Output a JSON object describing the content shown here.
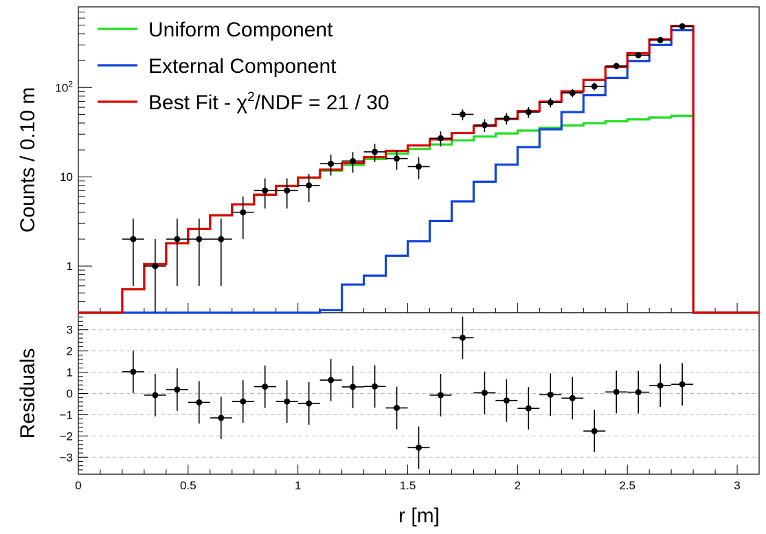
{
  "chart_data": [
    {
      "type": "line",
      "panel": "main",
      "yscale": "log",
      "xlim": [
        0,
        3.1
      ],
      "ylim": [
        0.3,
        800
      ],
      "xlabel": "",
      "ylabel": "Counts / 0.10 m",
      "ytick_labels": [
        {
          "value": 1,
          "label": "1"
        },
        {
          "value": 10,
          "label": "10"
        },
        {
          "value": 100,
          "label": "10",
          "exponent": "2"
        }
      ],
      "legend": {
        "placement": "top-left",
        "entries": [
          {
            "series": "uniform",
            "label": "Uniform Component"
          },
          {
            "series": "external",
            "label": "External Component"
          },
          {
            "series": "best_fit",
            "label_prefix": "Best Fit - ",
            "chi": "χ",
            "chi_sup": "2",
            "label_suffix": "/NDF = 21 / 30"
          }
        ]
      },
      "bin_edges": [
        0.0,
        0.1,
        0.2,
        0.3,
        0.4,
        0.5,
        0.6,
        0.7,
        0.8,
        0.9,
        1.0,
        1.1,
        1.2,
        1.3,
        1.4,
        1.5,
        1.6,
        1.7,
        1.8,
        1.9,
        2.0,
        2.1,
        2.2,
        2.3,
        2.4,
        2.5,
        2.6,
        2.7,
        2.8,
        2.9,
        3.0,
        3.1
      ],
      "series": [
        {
          "key": "uniform",
          "color": "#22dd22",
          "values": [
            0,
            0,
            0.55,
            1.05,
            1.8,
            2.6,
            3.7,
            4.9,
            6.3,
            7.9,
            9.8,
            11.7,
            13.6,
            15.8,
            18.2,
            20.5,
            23.0,
            25.6,
            28.2,
            30.6,
            32.9,
            35.3,
            37.5,
            39.7,
            41.8,
            43.9,
            46.1,
            48.3,
            0,
            0,
            0
          ]
        },
        {
          "key": "external",
          "color": "#1144dd",
          "values": [
            0,
            0,
            0,
            0,
            0,
            0,
            0,
            0,
            0,
            0,
            0,
            0.32,
            0.62,
            0.78,
            1.3,
            1.9,
            3.2,
            5.3,
            8.8,
            13.7,
            21.5,
            34.0,
            53.0,
            82.0,
            128.0,
            198.0,
            300.0,
            440.0,
            0,
            0,
            0
          ]
        },
        {
          "key": "best_fit",
          "color": "#dd0000",
          "values": [
            0,
            0,
            0.55,
            1.05,
            1.8,
            2.6,
            3.7,
            4.9,
            6.3,
            7.9,
            9.8,
            12.0,
            14.2,
            16.6,
            19.5,
            22.4,
            26.2,
            30.9,
            37.0,
            44.3,
            54.4,
            69.3,
            90.5,
            121.7,
            169.8,
            241.9,
            346.1,
            488.3,
            0,
            0,
            0
          ]
        }
      ],
      "data_points": {
        "x": [
          0.25,
          0.35,
          0.45,
          0.55,
          0.65,
          0.75,
          0.85,
          0.95,
          1.05,
          1.15,
          1.25,
          1.35,
          1.45,
          1.55,
          1.65,
          1.75,
          1.85,
          1.95,
          2.05,
          2.15,
          2.25,
          2.35,
          2.45,
          2.55,
          2.65,
          2.75
        ],
        "y": [
          2,
          1,
          2,
          2,
          2,
          4,
          7,
          7,
          8,
          14,
          15,
          19,
          16,
          13,
          27,
          50,
          38,
          45,
          53,
          68,
          87,
          103,
          174,
          230,
          340,
          485
        ],
        "yerr_low": [
          1.4,
          1,
          1.4,
          1.4,
          1.4,
          2,
          2.6,
          2.6,
          2.8,
          3.7,
          3.9,
          4.4,
          4,
          3.6,
          5.2,
          7.1,
          6.2,
          6.7,
          7.3,
          8.2,
          9.3,
          10.1,
          13.2,
          15.2,
          18.4,
          22
        ],
        "yerr_high": [
          1.4,
          1,
          1.4,
          1.4,
          1.4,
          2,
          2.6,
          2.6,
          2.8,
          3.7,
          3.9,
          4.4,
          4,
          3.6,
          5.2,
          7.1,
          6.2,
          6.7,
          7.3,
          8.2,
          9.3,
          10.1,
          13.2,
          15.2,
          18.4,
          22
        ],
        "xerr": 0.05
      }
    },
    {
      "type": "scatter",
      "panel": "residuals",
      "xlim": [
        0,
        3.1
      ],
      "ylim": [
        -3.8,
        3.8
      ],
      "xlabel": "r [m]",
      "ylabel": "Residuals",
      "xticks": [
        0,
        0.5,
        1,
        1.5,
        2,
        2.5,
        3
      ],
      "xtick_labels": [
        "0",
        "0.5",
        "1",
        "1.5",
        "2",
        "2.5",
        "3"
      ],
      "yticks": [
        -3,
        -2,
        -1,
        0,
        1,
        2,
        3
      ],
      "ytick_labels": [
        "−3",
        "−2",
        "−1",
        "0",
        "1",
        "2",
        "3"
      ],
      "grid_y": [
        -3,
        -2,
        -1,
        0,
        1,
        2,
        3
      ],
      "data_points": {
        "x": [
          0.25,
          0.35,
          0.45,
          0.55,
          0.65,
          0.75,
          0.85,
          0.95,
          1.05,
          1.15,
          1.25,
          1.35,
          1.45,
          1.55,
          1.65,
          1.75,
          1.85,
          1.95,
          2.05,
          2.15,
          2.25,
          2.35,
          2.45,
          2.55,
          2.65,
          2.75
        ],
        "y": [
          1.02,
          -0.08,
          0.18,
          -0.42,
          -1.15,
          -0.38,
          0.32,
          -0.38,
          -0.47,
          0.63,
          0.31,
          0.33,
          -0.68,
          -2.55,
          -0.08,
          2.62,
          0.03,
          -0.33,
          -0.7,
          -0.06,
          -0.22,
          -1.77,
          0.07,
          0.06,
          0.37,
          0.43
        ],
        "yerr": 1,
        "xerr": 0.05
      }
    }
  ]
}
